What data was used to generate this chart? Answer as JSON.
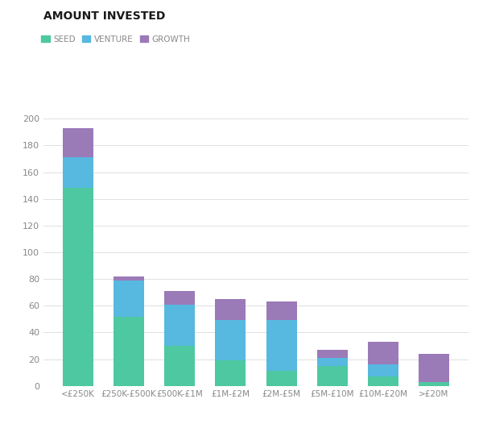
{
  "title": "AMOUNT INVESTED",
  "categories": [
    "<£250K",
    "£250K-£500K",
    "£500K-£1M",
    "£1M-£2M",
    "£2M-£5M",
    "£5M-£10M",
    "£10M-£20M",
    ">£20M"
  ],
  "seed": [
    148,
    52,
    30,
    19,
    11,
    15,
    7,
    3
  ],
  "venture": [
    23,
    27,
    31,
    30,
    38,
    6,
    9,
    0
  ],
  "growth": [
    22,
    3,
    10,
    16,
    14,
    6,
    17,
    21
  ],
  "seed_color": "#4dc8a0",
  "venture_color": "#57b8e0",
  "growth_color": "#9b7ab8",
  "ylim": [
    0,
    200
  ],
  "yticks": [
    0,
    20,
    40,
    60,
    80,
    100,
    120,
    140,
    160,
    180,
    200
  ],
  "background_color": "#ffffff",
  "title_fontsize": 10,
  "legend_labels": [
    "SEED",
    "VENTURE",
    "GROWTH"
  ],
  "title_color": "#1a1a1a",
  "tick_color": "#888888",
  "grid_color": "#e0e0e0"
}
